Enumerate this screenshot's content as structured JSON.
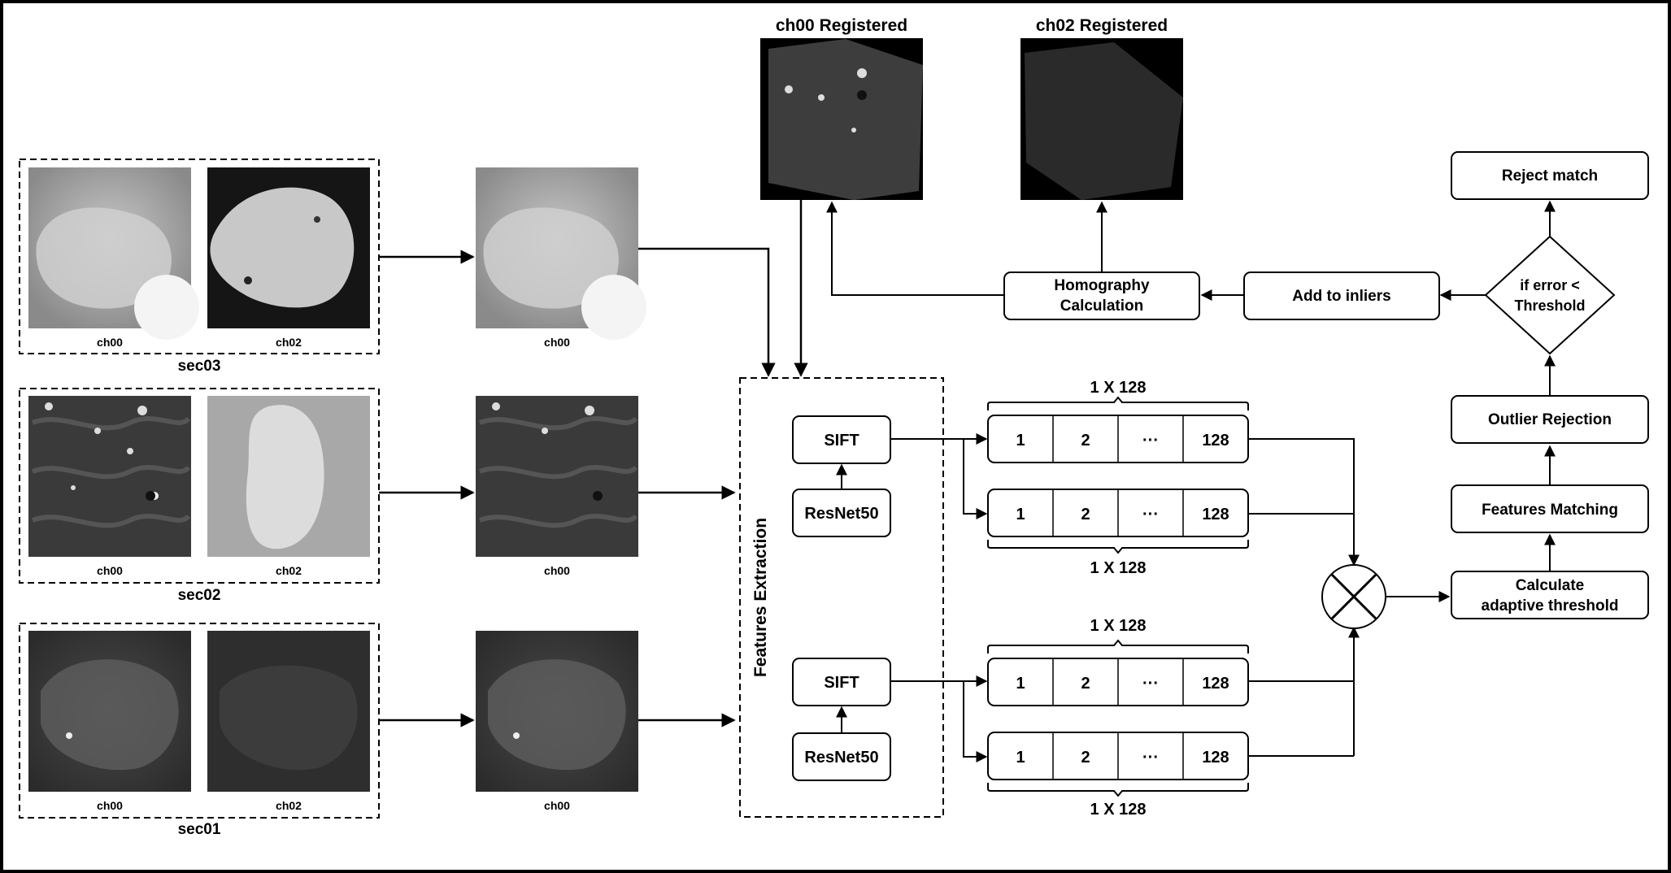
{
  "colors": {
    "line": "#000000",
    "background": "#ffffff",
    "tissue_light": "#bdbdbd",
    "tissue_dark": "#1a1a1a",
    "registered_bg": "#000000"
  },
  "sections": [
    {
      "name": "sec03",
      "left_label": "ch00",
      "right_label": "ch02",
      "output_label": "ch00"
    },
    {
      "name": "sec02",
      "left_label": "ch00",
      "right_label": "ch02",
      "output_label": "ch00"
    },
    {
      "name": "sec01",
      "left_label": "ch00",
      "right_label": "ch02",
      "output_label": "ch00"
    }
  ],
  "registered": {
    "ch00_title": "ch00 Registered",
    "ch02_title": "ch02 Registered"
  },
  "features_extraction": {
    "label": "Features Extraction",
    "sift_label": "SIFT",
    "resnet_label": "ResNet50"
  },
  "vector": {
    "cells": [
      "1",
      "2",
      "···",
      "128"
    ],
    "dim_label": "1 X 128"
  },
  "pipeline": {
    "homography_line1": "Homography",
    "homography_line2": "Calculation",
    "add_inliers": "Add to inliers",
    "decision_line1": "if error <",
    "decision_line2": "Threshold",
    "reject_match": "Reject match",
    "outlier_rejection": "Outlier Rejection",
    "features_matching": "Features Matching",
    "adaptive_line1": "Calculate",
    "adaptive_line2": "adaptive threshold"
  },
  "icons": {
    "combine": "multiply-circle-icon"
  }
}
